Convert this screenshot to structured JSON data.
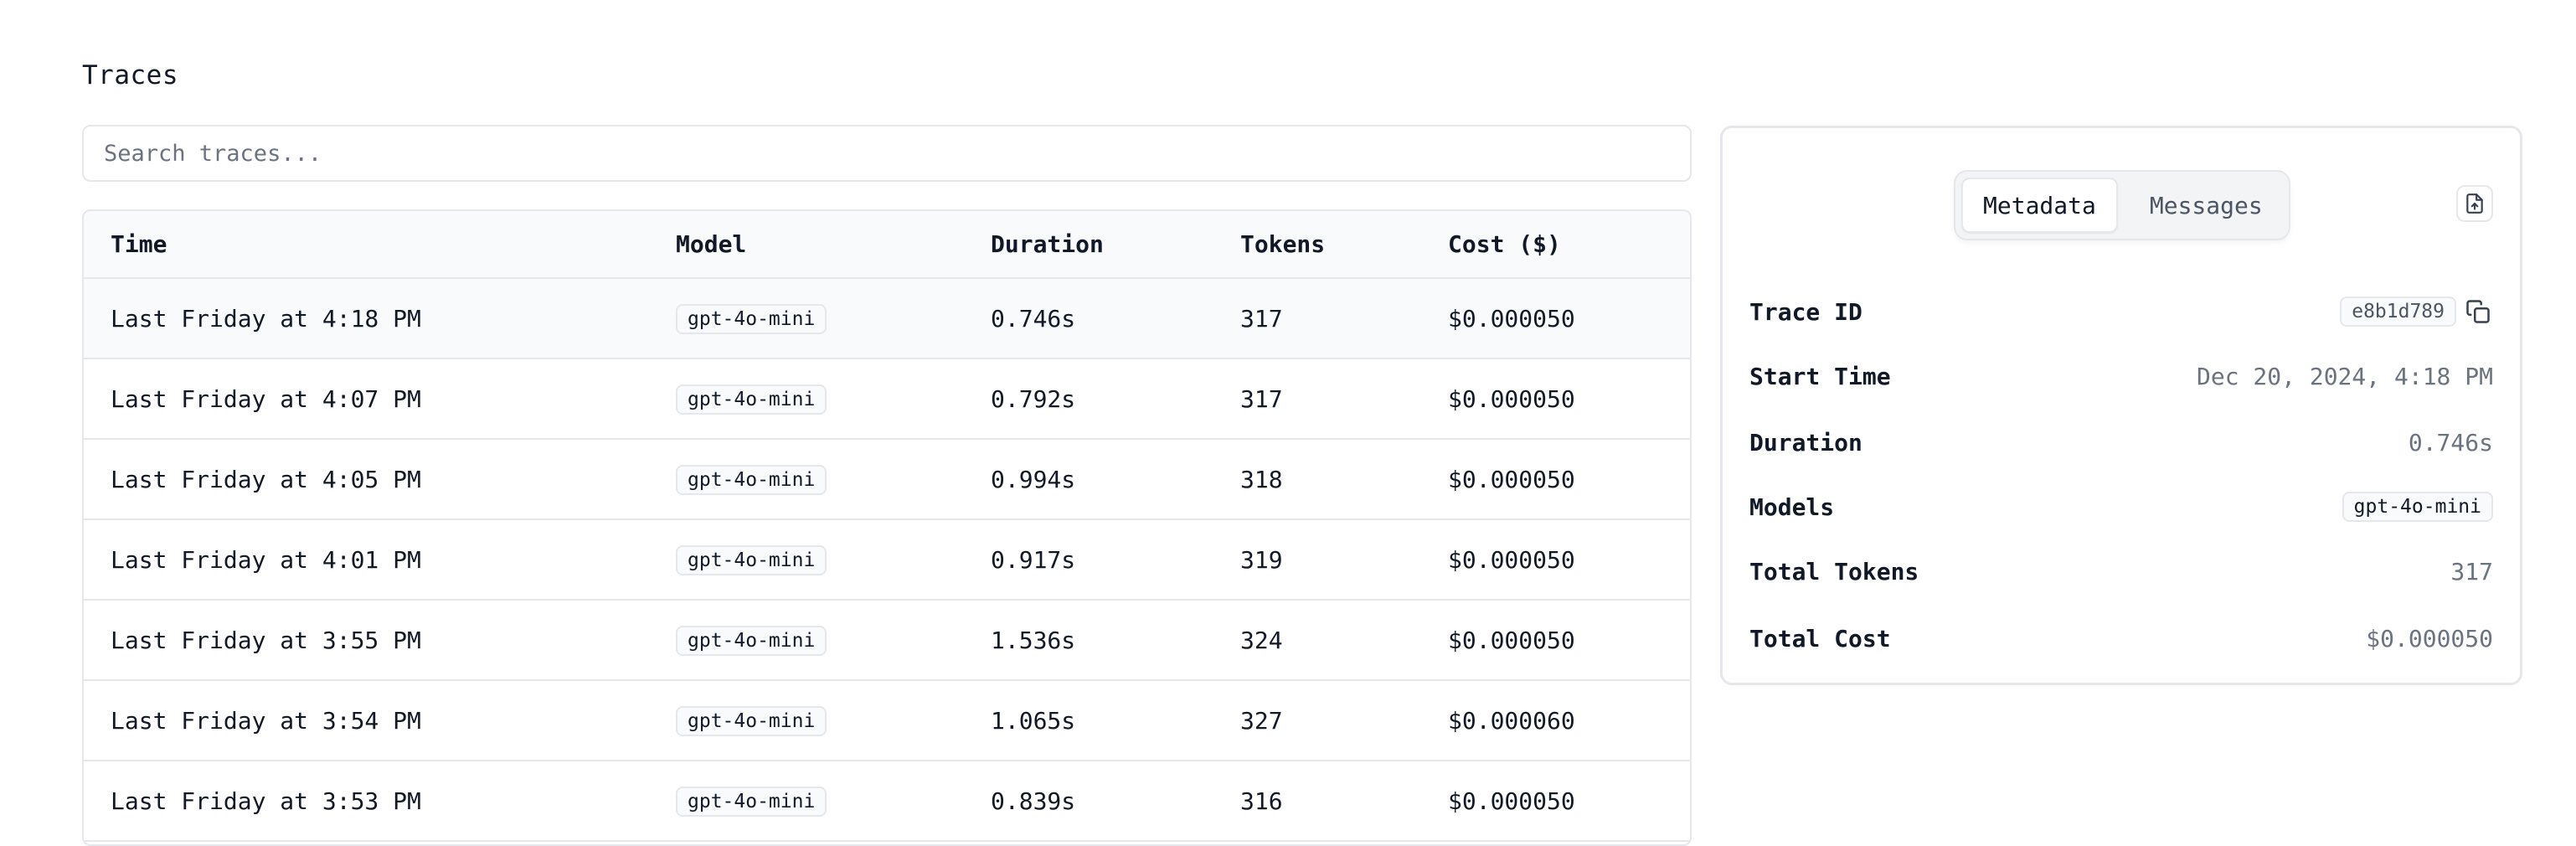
{
  "page": {
    "title": "Traces"
  },
  "search": {
    "placeholder": "Search traces...",
    "value": ""
  },
  "table": {
    "headers": [
      "Time",
      "Model",
      "Duration",
      "Tokens",
      "Cost ($)"
    ],
    "rows": [
      {
        "time": "Last Friday at 4:18 PM",
        "model": "gpt-4o-mini",
        "duration": "0.746s",
        "tokens": "317",
        "cost": "$0.000050"
      },
      {
        "time": "Last Friday at 4:07 PM",
        "model": "gpt-4o-mini",
        "duration": "0.792s",
        "tokens": "317",
        "cost": "$0.000050"
      },
      {
        "time": "Last Friday at 4:05 PM",
        "model": "gpt-4o-mini",
        "duration": "0.994s",
        "tokens": "318",
        "cost": "$0.000050"
      },
      {
        "time": "Last Friday at 4:01 PM",
        "model": "gpt-4o-mini",
        "duration": "0.917s",
        "tokens": "319",
        "cost": "$0.000050"
      },
      {
        "time": "Last Friday at 3:55 PM",
        "model": "gpt-4o-mini",
        "duration": "1.536s",
        "tokens": "324",
        "cost": "$0.000050"
      },
      {
        "time": "Last Friday at 3:54 PM",
        "model": "gpt-4o-mini",
        "duration": "1.065s",
        "tokens": "327",
        "cost": "$0.000060"
      },
      {
        "time": "Last Friday at 3:53 PM",
        "model": "gpt-4o-mini",
        "duration": "0.839s",
        "tokens": "316",
        "cost": "$0.000050"
      }
    ]
  },
  "panel": {
    "tabs": [
      {
        "label": "Metadata",
        "active": true
      },
      {
        "label": "Messages",
        "active": false
      }
    ],
    "export_icon": "file-export-icon",
    "metadata": {
      "trace_id_label": "Trace ID",
      "trace_id": "e8b1d789",
      "start_time_label": "Start Time",
      "start_time": "Dec 20, 2024, 4:18 PM",
      "duration_label": "Duration",
      "duration": "0.746s",
      "models_label": "Models",
      "models": "gpt-4o-mini",
      "total_tokens_label": "Total Tokens",
      "total_tokens": "317",
      "total_cost_label": "Total Cost",
      "total_cost": "$0.000050"
    }
  },
  "colors": {
    "border": "#e5e7eb",
    "header_bg": "#f9fafb",
    "muted_text": "#6b7280",
    "text": "#111827"
  }
}
